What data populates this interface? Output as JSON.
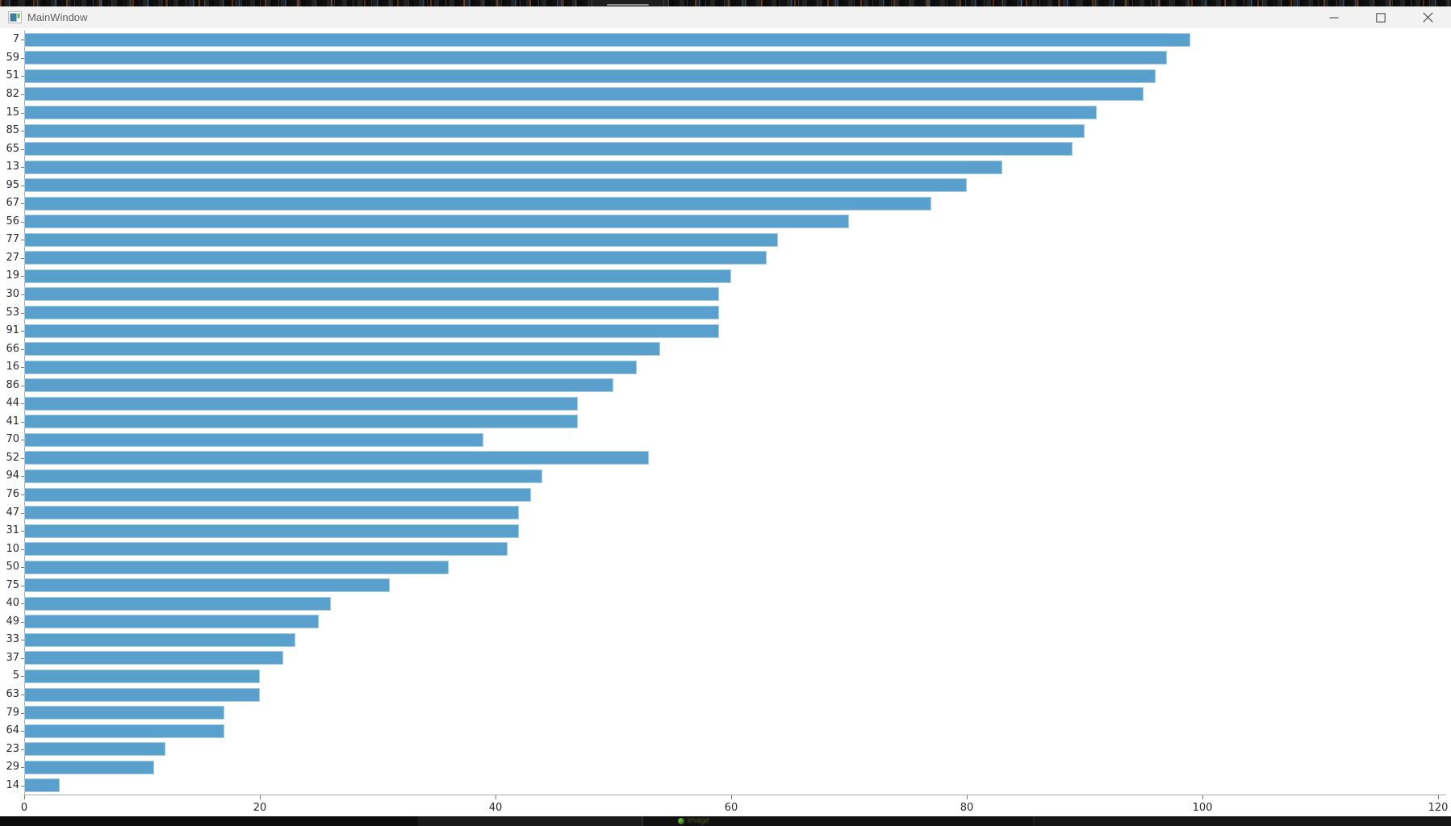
{
  "window": {
    "title": "MainWindow",
    "controls": [
      {
        "name": "minimize"
      },
      {
        "name": "maximize"
      },
      {
        "name": "close"
      }
    ]
  },
  "chart_data": {
    "type": "bar",
    "orientation": "horizontal",
    "title": "",
    "xlabel": "",
    "ylabel": "",
    "xlim": [
      0,
      120
    ],
    "x_ticks": [
      0,
      20,
      40,
      60,
      80,
      100,
      120
    ],
    "grid": false,
    "legend": false,
    "bar_color": "#5aa0cd",
    "categories": [
      "7",
      "59",
      "51",
      "82",
      "15",
      "85",
      "65",
      "13",
      "95",
      "67",
      "56",
      "77",
      "27",
      "19",
      "30",
      "53",
      "91",
      "66",
      "16",
      "86",
      "44",
      "41",
      "70",
      "52",
      "94",
      "76",
      "47",
      "31",
      "10",
      "50",
      "75",
      "40",
      "49",
      "33",
      "37",
      "5",
      "63",
      "79",
      "64",
      "23",
      "29",
      "14"
    ],
    "values": [
      99,
      97,
      96,
      95,
      91,
      90,
      89,
      83,
      80,
      77,
      70,
      64,
      63,
      60,
      59,
      59,
      59,
      54,
      52,
      50,
      47,
      47,
      39,
      53,
      44,
      43,
      42,
      42,
      41,
      36,
      31,
      26,
      25,
      23,
      22,
      20,
      20,
      17,
      17,
      12,
      11,
      3
    ]
  },
  "taskbar": {
    "overlay_label": "image"
  }
}
